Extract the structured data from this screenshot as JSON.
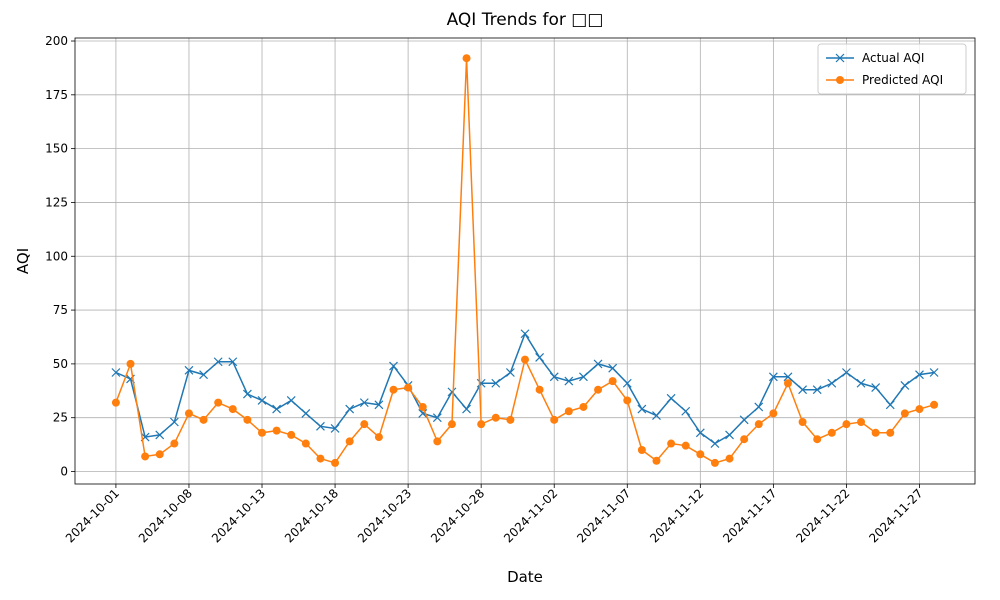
{
  "chart_data": {
    "type": "line",
    "title": "AQI Trends for □□",
    "x_label": "Date",
    "y_label": "AQI",
    "categories": [
      "2024-10-01",
      null,
      null,
      null,
      null,
      "2024-10-08",
      null,
      null,
      null,
      null,
      "2024-10-13",
      null,
      null,
      null,
      null,
      "2024-10-18",
      null,
      null,
      null,
      null,
      "2024-10-23",
      null,
      null,
      null,
      null,
      "2024-10-28",
      null,
      null,
      null,
      null,
      "2024-11-02",
      null,
      null,
      null,
      null,
      "2024-11-07",
      null,
      null,
      null,
      null,
      "2024-11-12",
      null,
      null,
      null,
      null,
      "2024-11-17",
      null,
      null,
      null,
      null,
      "2024-11-22",
      null,
      null,
      null,
      null,
      "2024-11-27",
      null
    ],
    "series": [
      {
        "name": "Actual AQI",
        "color": "#1f77b4",
        "marker": "x",
        "values": [
          46,
          43,
          16,
          17,
          23,
          47,
          45,
          51,
          51,
          36,
          33,
          29,
          33,
          27,
          21,
          20,
          29,
          32,
          31,
          49,
          40,
          27,
          25,
          37,
          29,
          41,
          41,
          46,
          64,
          53,
          44,
          42,
          44,
          50,
          48,
          41,
          29,
          26,
          34,
          28,
          18,
          13,
          17,
          24,
          30,
          44,
          44,
          38,
          38,
          41,
          46,
          41,
          39,
          31,
          40,
          45,
          46
        ]
      },
      {
        "name": "Predicted AQI",
        "color": "#ff7f0e",
        "marker": "o",
        "values": [
          32,
          50,
          7,
          8,
          13,
          27,
          24,
          32,
          29,
          24,
          18,
          19,
          17,
          13,
          6,
          4,
          14,
          22,
          16,
          38,
          39,
          30,
          14,
          22,
          192,
          22,
          25,
          24,
          52,
          38,
          24,
          28,
          30,
          38,
          42,
          33,
          10,
          5,
          13,
          12,
          8,
          4,
          6,
          15,
          22,
          27,
          41,
          23,
          15,
          18,
          22,
          23,
          18,
          18,
          27,
          29,
          31
        ]
      }
    ],
    "ylim": [
      -5.8,
      201.4
    ],
    "yticks": [
      0,
      25,
      50,
      75,
      100,
      125,
      150,
      175,
      200
    ],
    "grid": true,
    "legend": "upper right"
  }
}
